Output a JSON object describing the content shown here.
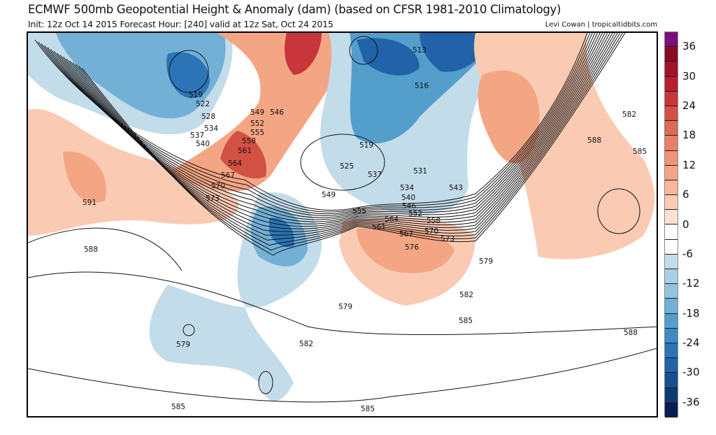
{
  "header": {
    "title": "ECMWF 500mb Geopotential Height & Anomaly (dam) (based on CFSR 1981-2010 Climatology)",
    "subtitle": "Init: 12z Oct 14 2015   Forecast Hour: [240]   valid at 12z Sat, Oct 24 2015",
    "credit": "Levi Cowan | tropicaltidbits.com"
  },
  "colorbar": {
    "labels": [
      "36",
      "30",
      "24",
      "18",
      "12",
      "6",
      "0",
      "-6",
      "-12",
      "-18",
      "-24",
      "-30",
      "-36"
    ],
    "colors": [
      "#7a0e7a",
      "#8a0b26",
      "#a3122b",
      "#b81d31",
      "#c8353a",
      "#d35045",
      "#de6a55",
      "#e88068",
      "#ee9477",
      "#f4a684",
      "#f8b79b",
      "#fbcab3",
      "#fde1d3",
      "#ffffff",
      "#ffffff",
      "#c3dcea",
      "#a9cfe4",
      "#93c3de",
      "#73b0d6",
      "#549ecb",
      "#3d8bc2",
      "#2b74b6",
      "#2162a8",
      "#17508f",
      "#0e3a70",
      "#0a1e55"
    ]
  },
  "map": {
    "contour_labels": [
      "519",
      "522",
      "528",
      "534",
      "537",
      "540",
      "549",
      "546",
      "552",
      "555",
      "558",
      "561",
      "564",
      "567",
      "570",
      "573",
      "591",
      "588",
      "513",
      "516",
      "519",
      "525",
      "537",
      "531",
      "534",
      "540",
      "546",
      "543",
      "549",
      "555",
      "552",
      "558",
      "561",
      "564",
      "567",
      "570",
      "573",
      "576",
      "579",
      "582",
      "585",
      "582",
      "588",
      "585",
      "579",
      "579",
      "582",
      "585",
      "585",
      "588"
    ]
  }
}
